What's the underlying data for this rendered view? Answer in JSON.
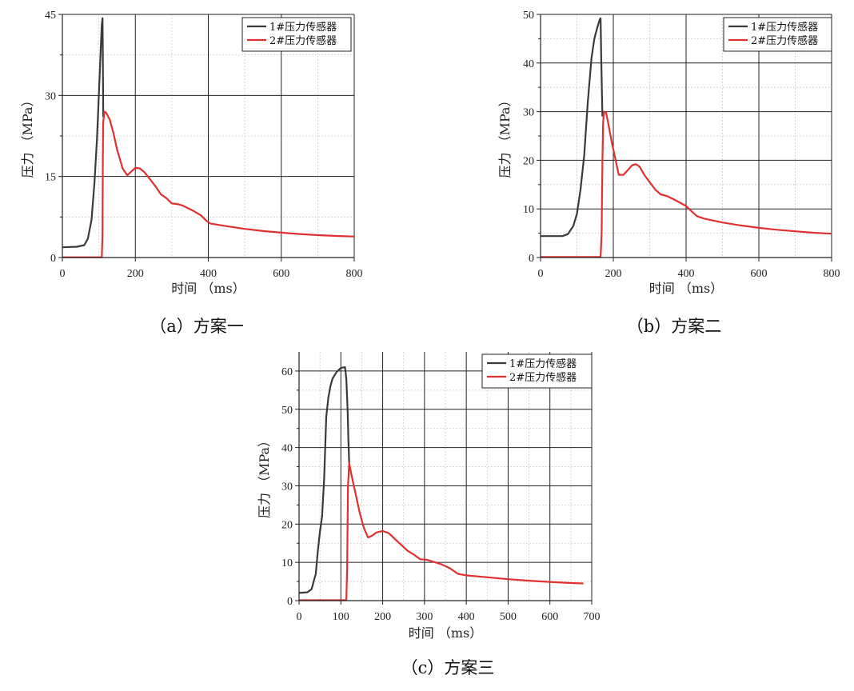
{
  "chart_data": [
    {
      "type": "line",
      "caption": "（a）方案一",
      "xlabel": "时间 （ms）",
      "ylabel": "压力 （MPa）",
      "xlim": [
        0,
        800
      ],
      "ylim": [
        0,
        45
      ],
      "xticks": [
        0,
        200,
        400,
        600,
        800
      ],
      "yticks": [
        0,
        15,
        30,
        45
      ],
      "grid": true,
      "legend_position": "top-right",
      "series": [
        {
          "name": "1#压力传感器",
          "color": "#3a3a3a",
          "x": [
            0,
            40,
            60,
            70,
            80,
            88,
            95,
            100,
            103,
            106,
            108,
            110,
            111,
            112
          ],
          "y": [
            1.9,
            2.0,
            2.3,
            3.5,
            7,
            14,
            22,
            30,
            35,
            40,
            43,
            44.3,
            38,
            26
          ]
        },
        {
          "name": "2#压力传感器",
          "color": "#e03030",
          "x": [
            0,
            108,
            110,
            111,
            112,
            115,
            120,
            130,
            140,
            150,
            165,
            178,
            190,
            200,
            212,
            225,
            240,
            255,
            270,
            285,
            300,
            315,
            330,
            345,
            360,
            380,
            395,
            405,
            450,
            500,
            550,
            600,
            650,
            700,
            750,
            800
          ],
          "y": [
            0.05,
            0.05,
            4,
            18,
            25,
            27,
            26.8,
            25.5,
            23,
            20,
            16.5,
            15.2,
            16,
            16.6,
            16.5,
            15.8,
            14.5,
            13.2,
            11.7,
            11,
            10,
            9.9,
            9.6,
            9.1,
            8.6,
            7.8,
            6.8,
            6.3,
            5.8,
            5.3,
            4.9,
            4.6,
            4.35,
            4.15,
            4.0,
            3.9
          ]
        }
      ]
    },
    {
      "type": "line",
      "caption": "（b）方案二",
      "xlabel": "时间 （ms）",
      "ylabel": "压力 （MPa）",
      "xlim": [
        0,
        800
      ],
      "ylim": [
        0,
        50
      ],
      "xticks": [
        0,
        200,
        400,
        600,
        800
      ],
      "yticks": [
        0,
        10,
        20,
        30,
        40,
        50
      ],
      "grid": true,
      "legend_position": "top-right",
      "series": [
        {
          "name": "1#压力传感器",
          "color": "#3a3a3a",
          "x": [
            0,
            60,
            75,
            90,
            100,
            110,
            120,
            130,
            140,
            148,
            155,
            160,
            163,
            165,
            167,
            170
          ],
          "y": [
            4.4,
            4.4,
            4.8,
            6.5,
            9,
            14,
            21,
            32,
            41,
            45,
            47,
            48.3,
            49,
            49.2,
            40,
            29
          ]
        },
        {
          "name": "2#压力传感器",
          "color": "#e03030",
          "x": [
            0,
            165,
            168,
            170,
            172,
            175,
            180,
            185,
            195,
            205,
            215,
            228,
            240,
            252,
            262,
            272,
            285,
            300,
            315,
            330,
            345,
            365,
            385,
            400,
            415,
            430,
            450,
            500,
            550,
            600,
            650,
            700,
            750,
            800
          ],
          "y": [
            0.1,
            0.1,
            5,
            20,
            28,
            30,
            29.8,
            28,
            24,
            20.5,
            17,
            17,
            18,
            19,
            19.2,
            18.7,
            17,
            15.5,
            14,
            13,
            12.7,
            12,
            11.2,
            10.6,
            9.5,
            8.5,
            8,
            7.2,
            6.6,
            6.1,
            5.7,
            5.4,
            5.1,
            4.9
          ]
        }
      ]
    },
    {
      "type": "line",
      "caption": "（c）方案三",
      "xlabel": "时间 （ms）",
      "ylabel": "压力 （MPa）",
      "xlim": [
        0,
        700
      ],
      "ylim": [
        0,
        65
      ],
      "xticks": [
        0,
        100,
        200,
        300,
        400,
        500,
        600,
        700
      ],
      "yticks": [
        0,
        10,
        20,
        30,
        40,
        50,
        60
      ],
      "grid": true,
      "legend_position": "top-right",
      "series": [
        {
          "name": "1#压力传感器",
          "color": "#3a3a3a",
          "x": [
            0,
            20,
            30,
            40,
            45,
            50,
            55,
            60,
            65,
            70,
            75,
            80,
            90,
            100,
            110,
            113,
            116,
            118,
            120
          ],
          "y": [
            2,
            2.2,
            3,
            7,
            13,
            18,
            22,
            32,
            48,
            53,
            56,
            58,
            59.8,
            60.8,
            61,
            58,
            50,
            42,
            36
          ]
        },
        {
          "name": "2#压力传感器",
          "color": "#e03030",
          "x": [
            0,
            113,
            115,
            117,
            120,
            125,
            135,
            145,
            155,
            165,
            175,
            185,
            200,
            215,
            230,
            245,
            260,
            275,
            290,
            305,
            320,
            340,
            360,
            380,
            400,
            450,
            500,
            550,
            600,
            650,
            680
          ],
          "y": [
            0.1,
            0.1,
            8,
            30,
            36,
            33,
            28,
            23,
            19,
            16.5,
            17,
            17.8,
            18.2,
            17.6,
            16,
            14.5,
            13,
            12,
            10.8,
            10.7,
            10.2,
            9.5,
            8.5,
            7.0,
            6.6,
            6.1,
            5.6,
            5.2,
            4.9,
            4.6,
            4.5
          ]
        }
      ]
    }
  ]
}
